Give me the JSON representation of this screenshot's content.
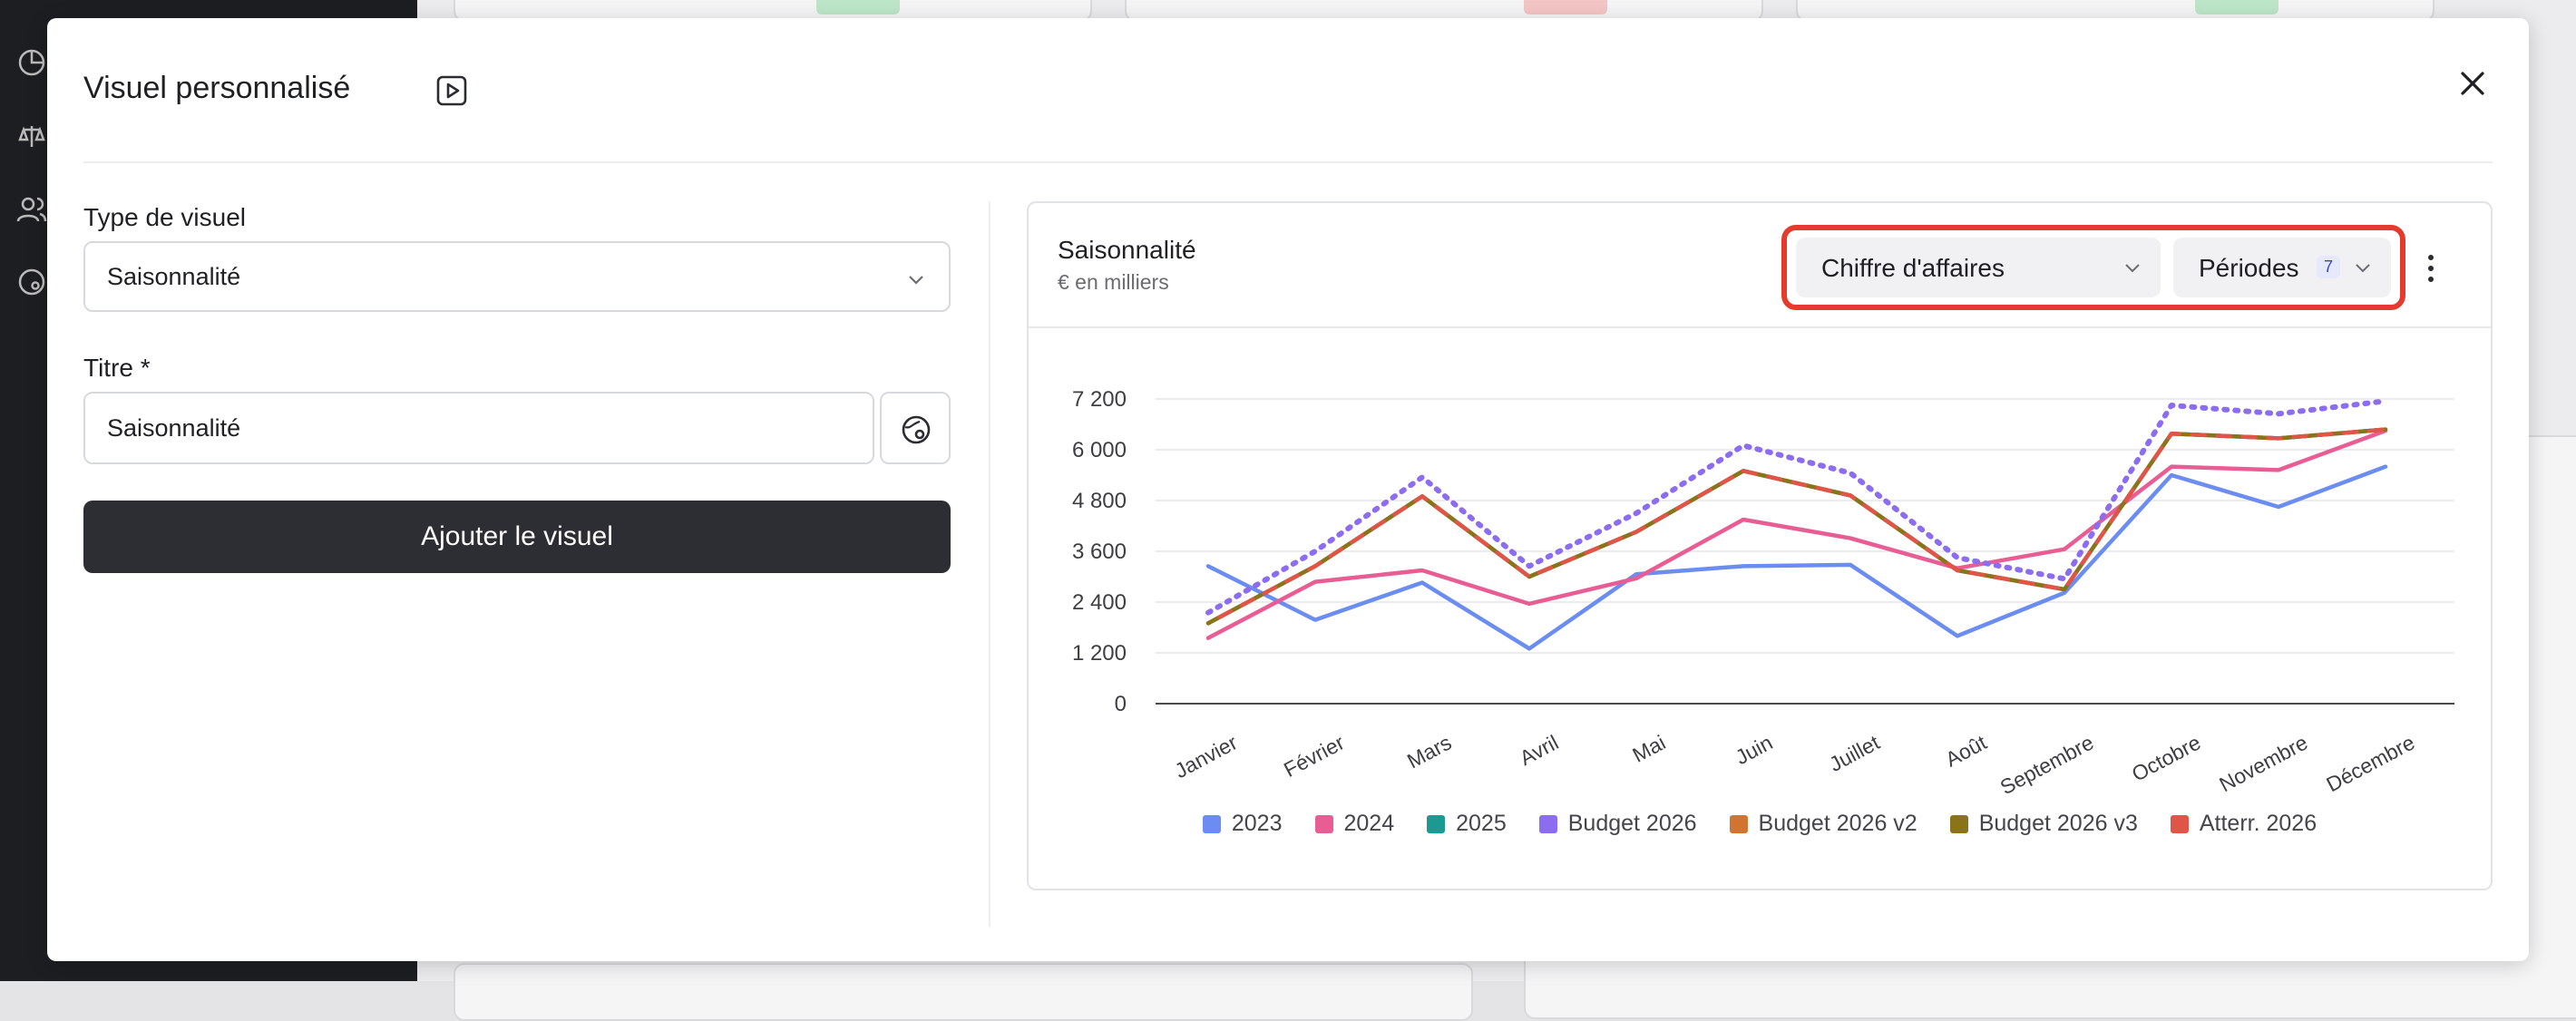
{
  "modal": {
    "title": "Visuel personnalisé",
    "type_label": "Type de visuel",
    "type_value": "Saisonnalité",
    "title_label": "Titre *",
    "title_value": "Saisonnalité",
    "add_button": "Ajouter le visuel"
  },
  "chart_card": {
    "title": "Saisonnalité",
    "subtitle": "€ en milliers",
    "metric_select": "Chiffre d'affaires",
    "periods_label": "Périodes",
    "periods_count": "7"
  },
  "colors": {
    "2023": "#6b8df2",
    "2024": "#e85d94",
    "2025": "#1a9a91",
    "budget_2026": "#8c6cf0",
    "budget_2026_v2": "#d2732f",
    "budget_2026_v3": "#8a7419",
    "atterr_2026": "#e05548",
    "highlight": "#e53b2c"
  },
  "icons": [
    "video-play-icon",
    "close-icon",
    "chevron-down-icon",
    "palette-icon",
    "more-vertical-icon"
  ],
  "chart_data": {
    "type": "line",
    "title": "Saisonnalité",
    "subtitle": "€ en milliers",
    "categories": [
      "Janvier",
      "Février",
      "Mars",
      "Avril",
      "Mai",
      "Juin",
      "Juillet",
      "Août",
      "Septembre",
      "Octobre",
      "Novembre",
      "Décembre"
    ],
    "y_ticks": [
      "0",
      "1 200",
      "2 400",
      "3 600",
      "4 800",
      "6 000",
      "7 200"
    ],
    "ylim": [
      0,
      7200
    ],
    "grid": true,
    "legend_position": "bottom",
    "series": [
      {
        "name": "2023",
        "color": "#6b8df2",
        "dash": false,
        "values": [
          3250,
          1980,
          2860,
          1300,
          3060,
          3250,
          3280,
          1600,
          2620,
          5400,
          4650,
          5600
        ]
      },
      {
        "name": "2024",
        "color": "#e85d94",
        "dash": false,
        "values": [
          1550,
          2880,
          3150,
          2360,
          2960,
          4350,
          3910,
          3200,
          3650,
          5600,
          5520,
          6450
        ]
      },
      {
        "name": "2025",
        "color": "#1a9a91",
        "dash": false,
        "values": [
          1900,
          3250,
          4900,
          3000,
          4060,
          5500,
          4920,
          3150,
          2700,
          6380,
          6270,
          6480
        ]
      },
      {
        "name": "Budget 2026",
        "color": "#8c6cf0",
        "dash": true,
        "values": [
          2150,
          3600,
          5350,
          3250,
          4500,
          6100,
          5450,
          3450,
          2950,
          7050,
          6850,
          7150
        ]
      },
      {
        "name": "Budget 2026 v2",
        "color": "#d2732f",
        "dash": false,
        "values": [
          1900,
          3250,
          4900,
          3000,
          4060,
          5500,
          4920,
          3150,
          2700,
          6380,
          6270,
          6480
        ]
      },
      {
        "name": "Budget 2026 v3",
        "color": "#8a7419",
        "dash": false,
        "values": [
          1900,
          3250,
          4900,
          3000,
          4060,
          5500,
          4920,
          3150,
          2700,
          6380,
          6270,
          6480
        ]
      },
      {
        "name": "Atterr. 2026",
        "color": "#e05548",
        "dash": false,
        "values": [
          1900,
          3250,
          4900,
          3000,
          4060,
          5500,
          4920,
          3150,
          2700,
          6380,
          6270,
          6480
        ]
      }
    ]
  }
}
